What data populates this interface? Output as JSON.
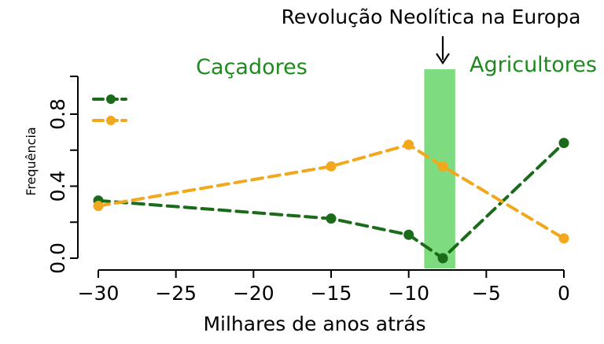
{
  "colors": {
    "series_a": "#1a6b1a",
    "series_b": "#f2a81d",
    "band": "#7fdb7f",
    "label_green": "#1e8a1e",
    "axis": "#000000"
  },
  "chart_data": {
    "type": "line",
    "annotation": "Revolução Neolítica na Europa",
    "region_left_label": "Caçadores",
    "region_right_label": "Agricultores",
    "xlabel": "Milhares de anos atrás",
    "ylabel": "Frequência",
    "xlim": [
      -30,
      0
    ],
    "ylim": [
      0,
      0.8
    ],
    "xticks": [
      -30,
      -25,
      -20,
      -15,
      -10,
      -5,
      0
    ],
    "xtick_labels": [
      "−30",
      "−25",
      "−20",
      "−15",
      "−10",
      "−5",
      "0"
    ],
    "yticks": [
      0,
      0.4,
      0.8
    ],
    "ytick_labels": [
      "0.0",
      "0.4",
      "0.8"
    ],
    "band": {
      "x_start": -9,
      "x_end": -7
    },
    "annotation_x": -7.8,
    "legend_placement": "top-left",
    "grid": false,
    "series": [
      {
        "color": "#1a6b1a",
        "x": [
          -30,
          -15,
          -10,
          -7.8,
          0
        ],
        "y": [
          0.32,
          0.22,
          0.13,
          0.0,
          0.64
        ]
      },
      {
        "color": "#f2a81d",
        "x": [
          -30,
          -15,
          -10,
          -7.8,
          0
        ],
        "y": [
          0.29,
          0.51,
          0.63,
          0.51,
          0.11
        ]
      }
    ]
  }
}
